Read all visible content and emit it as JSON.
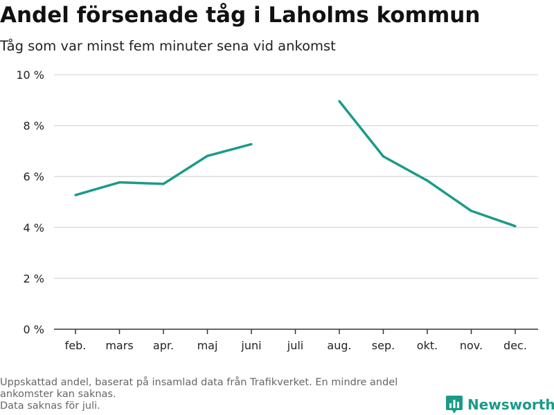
{
  "header": {
    "title": "Andel försenade tåg i Laholms kommun",
    "subtitle": "Tåg som var minst fem minuter sena vid ankomst"
  },
  "chart_data": {
    "type": "line",
    "title": "Andel försenade tåg i Laholms kommun",
    "subtitle": "Tåg som var minst fem minuter sena vid ankomst",
    "xlabel": "",
    "ylabel": "",
    "categories": [
      "feb.",
      "mars",
      "apr.",
      "maj",
      "juni",
      "juli",
      "aug.",
      "sep.",
      "okt.",
      "nov.",
      "dec."
    ],
    "series": [
      {
        "values": [
          5.27,
          5.77,
          5.71,
          6.81,
          7.27,
          null,
          8.96,
          6.79,
          5.84,
          4.65,
          4.05
        ],
        "color": "#1a9b89"
      }
    ],
    "ylim": [
      0,
      10
    ],
    "yticks": [
      0,
      2,
      4,
      6,
      8,
      10
    ],
    "ytick_labels": [
      "0 %",
      "2 %",
      "4 %",
      "6 %",
      "8 %",
      "10 %"
    ],
    "grid": true,
    "legend": "none"
  },
  "footnote": {
    "line1": "Uppskattad andel, baserat på insamlad data från Trafikverket. En mindre andel",
    "line2": "ankomster kan saknas.",
    "line3": "Data saknas för juli."
  },
  "brand": {
    "name": "Newsworthy",
    "icon": "newsworthy-logo-icon",
    "color": "#1a9b89"
  }
}
